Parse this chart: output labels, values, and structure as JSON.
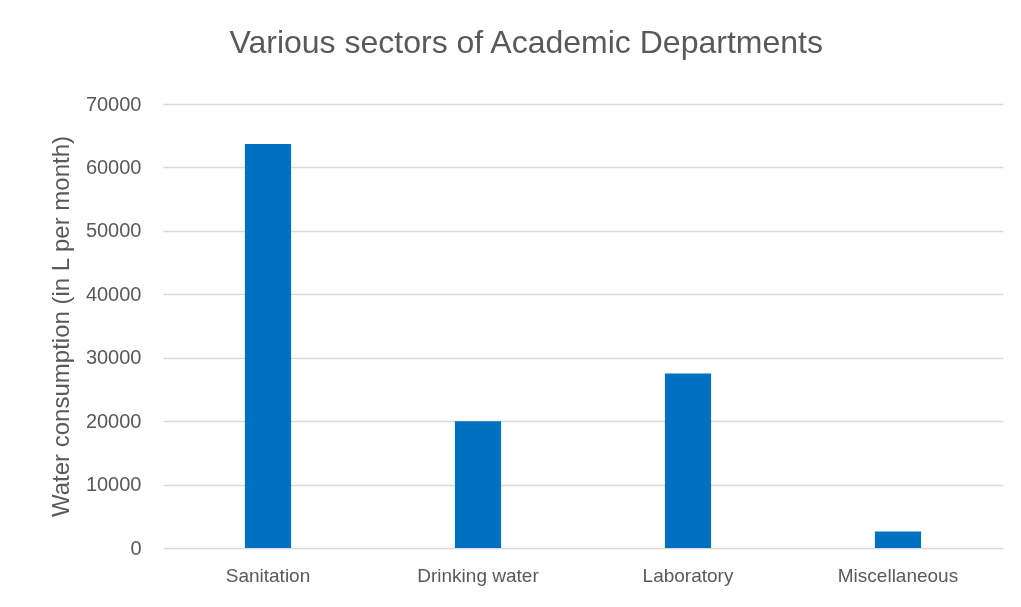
{
  "chart_data": {
    "type": "bar",
    "title": "Various sectors of Academic Departments",
    "ylabel": "Water consumption (in L per month)",
    "categories": [
      "Sanitation",
      "Drinking water",
      "Laboratory",
      "Miscellaneous"
    ],
    "values": [
      63700,
      20000,
      27500,
      2600
    ],
    "color": "#0070c0",
    "ylim": [
      0,
      70000
    ],
    "yticks": [
      0,
      10000,
      20000,
      30000,
      40000,
      50000,
      60000,
      70000
    ],
    "grid": "y"
  }
}
